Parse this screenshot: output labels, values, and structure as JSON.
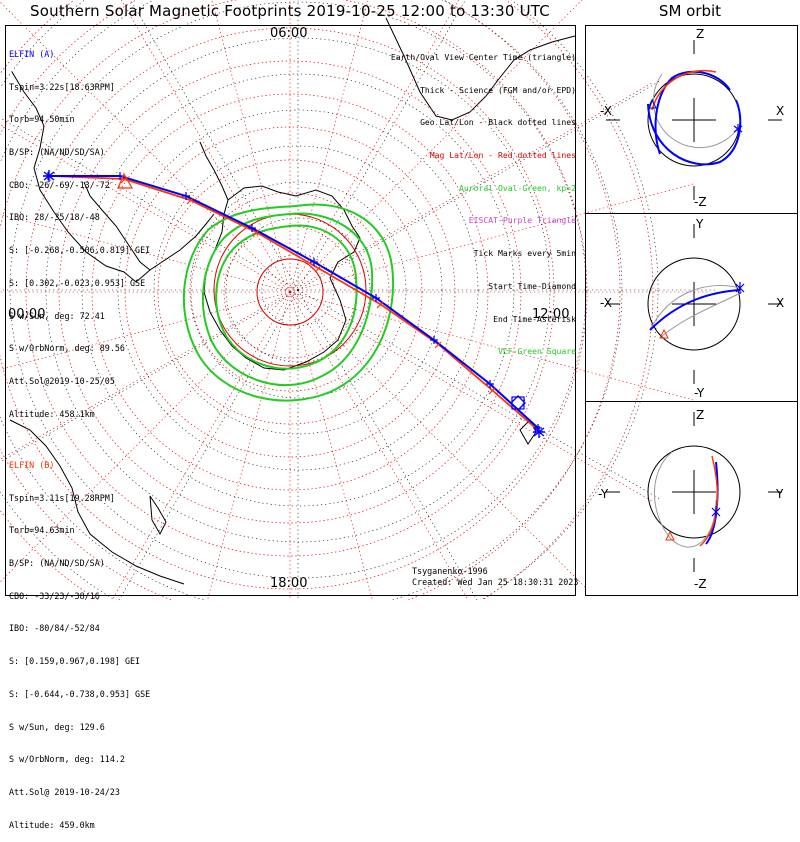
{
  "title": "Southern Solar Magnetic Footprints 2019-10-25 12:00 to 13:30 UTC",
  "orbit_title": "SM orbit",
  "clock_labels": {
    "top": "06:00",
    "left": "00:00",
    "right": "12:00",
    "bottom": "18:00"
  },
  "legend": [
    {
      "text": "Earth/Oval View Center Time (triangle)",
      "color": "#000000"
    },
    {
      "text": "Thick - Science (FGM and/or EPD)",
      "color": "#000000"
    },
    {
      "text": "Geo Lat/Lon - Black dotted lines",
      "color": "#000000"
    },
    {
      "text": "Mag Lat/Lon - Red dotted lines",
      "color": "#e00000"
    },
    {
      "text": "Auroral Oval-Green, kp=2",
      "color": "#22cc22"
    },
    {
      "text": "EISCAT-Purple Triangle",
      "color": "#cc44cc"
    },
    {
      "text": "Tick Marks every 5min",
      "color": "#000000"
    },
    {
      "text": "Start Time-Diamond",
      "color": "#000000"
    },
    {
      "text": "End Time-Asterisk",
      "color": "#000000"
    },
    {
      "text": "VLF-Green Square",
      "color": "#22cc22"
    }
  ],
  "elfin_a": {
    "name": "ELFIN (A)",
    "color": "#0000ff",
    "lines": [
      "Tspin=3.22s[18.63RPM]",
      "Torb=94.50min",
      "B/SP: (NA/ND/SD/SA)",
      "CBO: -26/-69/-13/-72",
      "IBO: 28/-35/18/-48",
      "S: [-0.268,-0.506,0.819] GEI",
      "S: [0.302,-0.023,0.953] GSE",
      "S w/Sun, deg: 72.41",
      "S w/OrbNorm, deg: 89.56",
      "Att.Sol@2019-10-25/05",
      "Altitude: 458.1km"
    ]
  },
  "elfin_b": {
    "name": "ELFIN (B)",
    "color": "#ff3300",
    "lines": [
      "Tspin=3.11s[19.28RPM]",
      "Torb=94.63min",
      "B/SP: (NA/ND/SD/SA)",
      "CBO: -33/23/-38/16",
      "IBO: -80/84/-52/84",
      "S: [0.159,0.967,0.198] GEI",
      "S: [-0.644,-0.738,0.953] GSE",
      "S w/Sun, deg: 129.6",
      "S w/OrbNorm, deg: 114.2",
      "Att.Sol@ 2019-10-24/23",
      "Altitude: 459.0km"
    ]
  },
  "credit": {
    "model": "Tsyganenko-1996",
    "created": "Created: Wed Jan 25 18:30:31 2023"
  },
  "orbit_panels": [
    {
      "top": "Z",
      "bottom": "-Z",
      "left": "-X",
      "right": "X"
    },
    {
      "top": "Y",
      "bottom": "-Y",
      "left": "-X",
      "right": "X"
    },
    {
      "top": "Z",
      "bottom": "-Z",
      "left": "-Y",
      "right": "Y"
    }
  ],
  "colors": {
    "elfin_a": "#0000ff",
    "elfin_b": "#ff3300",
    "mag_grid": "#e00000",
    "oval": "#22cc22",
    "geo_grid": "#000000"
  }
}
